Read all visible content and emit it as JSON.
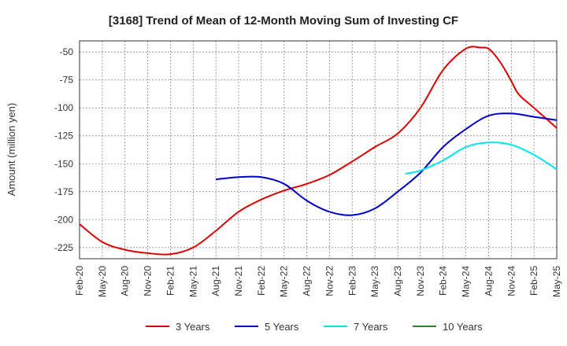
{
  "chart_data": {
    "type": "line",
    "title": "[3168]  Trend of Mean of 12-Month Moving Sum of Investing CF",
    "xlabel": "",
    "ylabel": "Amount (million yen)",
    "ylim": [
      -235,
      -40
    ],
    "yticks": [
      -50,
      -75,
      -100,
      -125,
      -150,
      -175,
      -200,
      -225
    ],
    "x_ticks": [
      "Feb-20",
      "May-20",
      "Aug-20",
      "Nov-20",
      "Feb-21",
      "May-21",
      "Aug-21",
      "Nov-21",
      "Feb-22",
      "May-22",
      "Aug-22",
      "Nov-22",
      "Feb-23",
      "May-23",
      "Aug-23",
      "Nov-23",
      "Feb-24",
      "May-24",
      "Aug-24",
      "Nov-24",
      "Feb-25",
      "May-25"
    ],
    "x_unit": "months since Feb-20",
    "xlim": [
      0,
      63
    ],
    "grid": true,
    "legend_position": "bottom",
    "series": [
      {
        "name": "3 Years",
        "color": "#dd0000",
        "x": [
          0,
          3,
          6,
          9,
          12,
          15,
          18,
          21,
          24,
          27,
          30,
          33,
          36,
          39,
          42,
          45,
          48,
          51,
          53,
          54,
          55,
          56,
          57,
          58,
          60,
          63
        ],
        "values": [
          -204,
          -220,
          -227,
          -230,
          -231,
          -225,
          -210,
          -193,
          -182,
          -174,
          -168,
          -160,
          -148,
          -135,
          -123,
          -100,
          -66,
          -47,
          -46,
          -47,
          -54,
          -64,
          -76,
          -88,
          -100,
          -118
        ]
      },
      {
        "name": "5 Years",
        "color": "#0000cc",
        "x": [
          18,
          21,
          24,
          27,
          30,
          33,
          36,
          39,
          42,
          45,
          48,
          51,
          54,
          57,
          60,
          63
        ],
        "values": [
          -164,
          -162,
          -162,
          -168,
          -183,
          -193,
          -196,
          -190,
          -175,
          -158,
          -135,
          -119,
          -107,
          -105,
          -108,
          -111
        ]
      },
      {
        "name": "7 Years",
        "color": "#00e5ee",
        "x": [
          43,
          45,
          48,
          51,
          54,
          57,
          60,
          63
        ],
        "values": [
          -159,
          -156,
          -147,
          -135,
          -131,
          -133,
          -142,
          -155
        ]
      },
      {
        "name": "10 Years",
        "color": "#228b22",
        "x": [],
        "values": []
      }
    ]
  }
}
